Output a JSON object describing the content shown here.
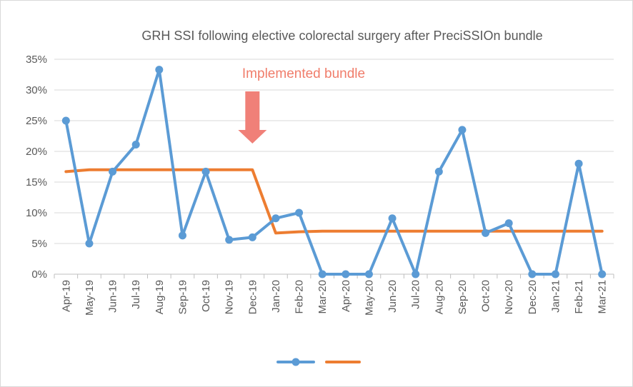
{
  "chart_data": {
    "type": "line",
    "title": "GRH SSI following elective colorectal surgery after PreciSSIOn bundle",
    "xlabel": "",
    "ylabel": "",
    "categories": [
      "Apr-19",
      "May-19",
      "Jun-19",
      "Jul-19",
      "Aug-19",
      "Sep-19",
      "Oct-19",
      "Nov-19",
      "Dec-19",
      "Jan-20",
      "Feb-20",
      "Mar-20",
      "Apr-20",
      "May-20",
      "Jun-20",
      "Jul-20",
      "Aug-20",
      "Sep-20",
      "Oct-20",
      "Nov-20",
      "Dec-20",
      "Jan-21",
      "Feb-21",
      "Mar-21"
    ],
    "ylim": [
      0,
      35
    ],
    "yticks": [
      0,
      5,
      10,
      15,
      20,
      25,
      30,
      35
    ],
    "ytick_labels": [
      "0%",
      "5%",
      "10%",
      "15%",
      "20%",
      "25%",
      "30%",
      "35%"
    ],
    "grid": true,
    "legend": "bottom",
    "series": [
      {
        "color": "#5b9bd5",
        "marker": "circle",
        "values": [
          25.0,
          5.0,
          16.7,
          21.1,
          33.3,
          6.3,
          16.7,
          5.6,
          6.0,
          9.1,
          10.0,
          0,
          0,
          0,
          9.1,
          0,
          16.7,
          23.5,
          6.7,
          8.3,
          0,
          0,
          18.0,
          0
        ]
      },
      {
        "color": "#ed7d31",
        "marker": "none",
        "values": [
          16.7,
          17.0,
          17.0,
          17.0,
          17.0,
          17.0,
          17.0,
          17.0,
          17.0,
          6.7,
          6.9,
          7.0,
          7.0,
          7.0,
          7.0,
          7.0,
          7.0,
          7.0,
          7.0,
          7.0,
          7.0,
          7.0,
          7.0,
          7.0
        ]
      }
    ],
    "annotations": [
      {
        "text": "Implemented bundle",
        "color": "#f07d6b",
        "arrow_color": "#f08078",
        "arrow_at": "Dec-19",
        "pointing": "down"
      }
    ]
  }
}
